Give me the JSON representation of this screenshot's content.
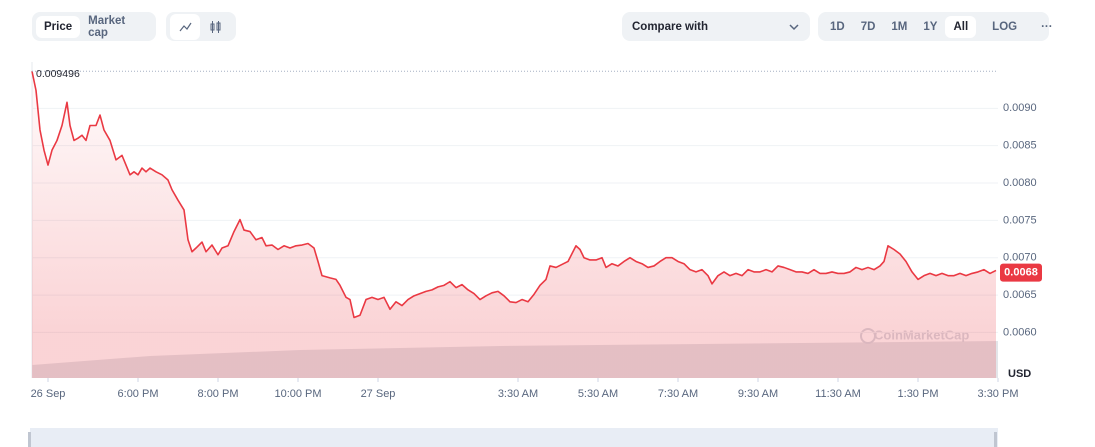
{
  "controls": {
    "view": [
      "Price",
      "Market cap"
    ],
    "compare": "Compare with",
    "ranges": [
      "1D",
      "7D",
      "1M",
      "1Y",
      "All"
    ],
    "log": "LOG",
    "more": "···"
  },
  "chart_data": {
    "type": "line",
    "color": "#ea3943",
    "grid": true,
    "y_unit": "USD",
    "watermark": "CoinMarketCap",
    "max_value_label": 0.009496,
    "last_price_label": 0.0068,
    "xlim": [
      15.35,
      39.5
    ],
    "ylim": [
      0.00539,
      0.00962
    ],
    "xticks": [
      {
        "value": 15.75,
        "label": "26 Sep"
      },
      {
        "value": 18,
        "label": "6:00 PM"
      },
      {
        "value": 20,
        "label": "8:00 PM"
      },
      {
        "value": 22,
        "label": "10:00 PM"
      },
      {
        "value": 24,
        "label": "27 Sep"
      },
      {
        "value": 27.5,
        "label": "3:30 AM"
      },
      {
        "value": 29.5,
        "label": "5:30 AM"
      },
      {
        "value": 31.5,
        "label": "7:30 AM"
      },
      {
        "value": 33.5,
        "label": "9:30 AM"
      },
      {
        "value": 35.5,
        "label": "11:30 AM"
      },
      {
        "value": 37.5,
        "label": "1:30 PM"
      },
      {
        "value": 39.5,
        "label": "3:30 PM"
      }
    ],
    "yticks": [
      {
        "value": 0.006,
        "label": "0.0060"
      },
      0.0065,
      {
        "value": 0.007,
        "label": "0.0070"
      },
      0.0075,
      {
        "value": 0.008,
        "label": "0.0080"
      },
      0.0085,
      {
        "value": 0.009,
        "label": "0.0090"
      }
    ],
    "x": [
      15.35,
      15.45,
      15.55,
      15.65,
      15.75,
      15.85,
      15.975,
      16.1,
      16.225,
      16.3,
      16.4,
      16.5,
      16.6,
      16.7,
      16.8,
      16.95,
      17.05,
      17.15,
      17.3,
      17.45,
      17.6,
      17.7,
      17.8,
      17.9,
      18.0,
      18.1,
      18.2,
      18.3,
      18.45,
      18.6,
      18.75,
      18.85,
      19.0,
      19.15,
      19.25,
      19.35,
      19.45,
      19.6,
      19.7,
      19.85,
      20.0,
      20.1,
      20.25,
      20.4,
      20.55,
      20.65,
      20.8,
      20.95,
      21.1,
      21.2,
      21.35,
      21.5,
      21.65,
      21.8,
      21.95,
      22.1,
      22.25,
      22.4,
      22.5,
      22.6,
      22.8,
      22.95,
      23.05,
      23.2,
      23.3,
      23.4,
      23.55,
      23.7,
      23.85,
      24.0,
      24.15,
      24.3,
      24.45,
      24.6,
      24.75,
      24.9,
      25.05,
      25.2,
      25.35,
      25.5,
      25.65,
      25.8,
      25.95,
      26.1,
      26.25,
      26.4,
      26.55,
      26.7,
      26.85,
      27.0,
      27.15,
      27.3,
      27.45,
      27.6,
      27.75,
      27.9,
      28.05,
      28.2,
      28.3,
      28.45,
      28.6,
      28.75,
      28.95,
      29.05,
      29.15,
      29.3,
      29.45,
      29.6,
      29.7,
      29.85,
      30.0,
      30.15,
      30.3,
      30.45,
      30.6,
      30.75,
      30.9,
      31.05,
      31.2,
      31.35,
      31.5,
      31.65,
      31.8,
      31.95,
      32.1,
      32.25,
      32.35,
      32.5,
      32.65,
      32.8,
      32.95,
      33.1,
      33.25,
      33.4,
      33.55,
      33.7,
      33.85,
      34.0,
      34.15,
      34.3,
      34.45,
      34.6,
      34.75,
      34.9,
      35.05,
      35.2,
      35.35,
      35.5,
      35.65,
      35.8,
      35.95,
      36.1,
      36.25,
      36.4,
      36.55,
      36.65,
      36.75,
      36.9,
      37.05,
      37.2,
      37.35,
      37.5,
      37.65,
      37.8,
      37.95,
      38.1,
      38.25,
      38.4,
      38.55,
      38.7,
      38.85,
      39.0,
      39.15,
      39.3,
      39.45
    ],
    "values": [
      0.009496,
      0.00924,
      0.00871,
      0.00844,
      0.00824,
      0.00844,
      0.00857,
      0.00877,
      0.00908,
      0.00877,
      0.00857,
      0.0086,
      0.00864,
      0.00857,
      0.00877,
      0.00877,
      0.00891,
      0.00871,
      0.00857,
      0.00831,
      0.00837,
      0.00824,
      0.00811,
      0.00815,
      0.00811,
      0.0082,
      0.00815,
      0.0082,
      0.00815,
      0.00811,
      0.00804,
      0.00791,
      0.00777,
      0.00764,
      0.00724,
      0.00708,
      0.00713,
      0.00721,
      0.00708,
      0.00717,
      0.00704,
      0.00713,
      0.00716,
      0.00735,
      0.00751,
      0.00737,
      0.00735,
      0.00724,
      0.00727,
      0.00716,
      0.00717,
      0.00711,
      0.00716,
      0.00713,
      0.00716,
      0.00717,
      0.00719,
      0.00713,
      0.00695,
      0.00676,
      0.00673,
      0.00671,
      0.00663,
      0.00647,
      0.00644,
      0.0062,
      0.00623,
      0.00644,
      0.00647,
      0.00644,
      0.00647,
      0.00631,
      0.00641,
      0.00636,
      0.00644,
      0.00649,
      0.00652,
      0.00655,
      0.00657,
      0.00661,
      0.00663,
      0.00668,
      0.0066,
      0.00664,
      0.00657,
      0.00652,
      0.00644,
      0.00649,
      0.00653,
      0.00655,
      0.00649,
      0.00641,
      0.0064,
      0.00644,
      0.00641,
      0.00651,
      0.00663,
      0.00671,
      0.00689,
      0.00687,
      0.00691,
      0.00695,
      0.00716,
      0.00711,
      0.007,
      0.00697,
      0.00697,
      0.007,
      0.00687,
      0.00692,
      0.00689,
      0.00695,
      0.007,
      0.00695,
      0.00692,
      0.00687,
      0.00689,
      0.00695,
      0.007,
      0.007,
      0.00695,
      0.00692,
      0.00684,
      0.00681,
      0.00684,
      0.00676,
      0.00665,
      0.00676,
      0.00681,
      0.00676,
      0.00679,
      0.00676,
      0.00684,
      0.00681,
      0.00681,
      0.00684,
      0.00681,
      0.00689,
      0.00687,
      0.00684,
      0.00681,
      0.00681,
      0.00679,
      0.00684,
      0.00679,
      0.00679,
      0.00681,
      0.00679,
      0.00679,
      0.00681,
      0.00687,
      0.00684,
      0.00687,
      0.00684,
      0.00689,
      0.00695,
      0.00716,
      0.00711,
      0.00705,
      0.00695,
      0.00681,
      0.00671,
      0.00676,
      0.00679,
      0.00676,
      0.00679,
      0.00676,
      0.00676,
      0.00679,
      0.00676,
      0.00679,
      0.00681,
      0.00684,
      0.00679,
      0.00683
    ]
  }
}
